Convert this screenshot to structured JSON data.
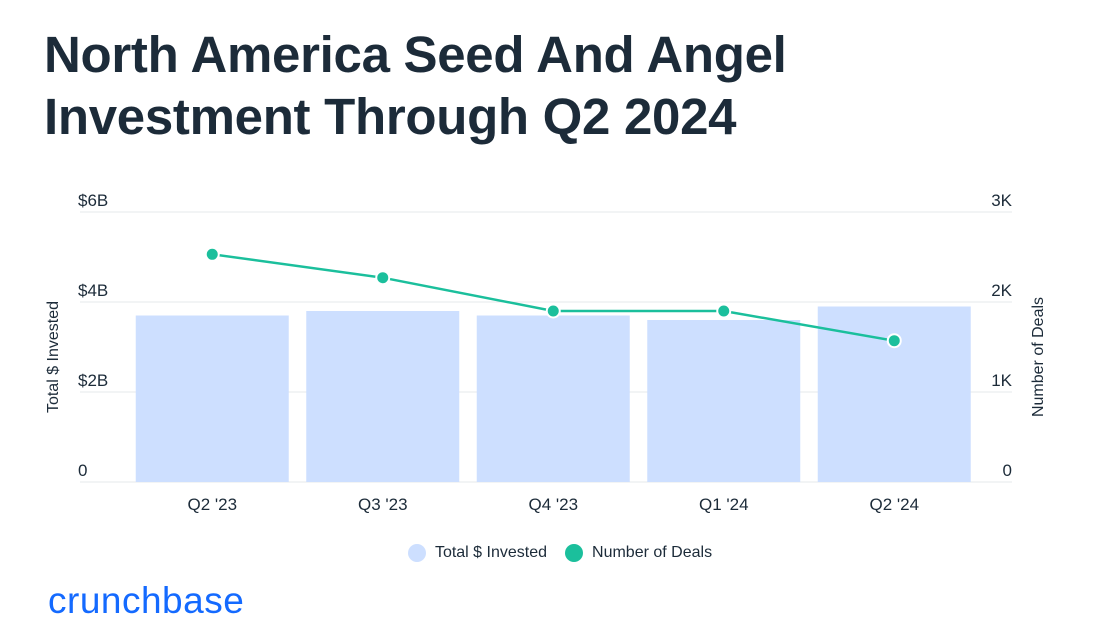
{
  "title_lines": [
    "North America Seed And Angel",
    "Investment Through Q2 2024"
  ],
  "colors": {
    "bar": "#cddfff",
    "line": "#1bbf9c",
    "grid": "#e6e8eb",
    "text": "#1c2b39",
    "brand": "#146aff"
  },
  "chart_data": {
    "type": "bar+line",
    "title": "North America Seed And Angel Investment Through Q2 2024",
    "categories": [
      "Q2 '23",
      "Q3 '23",
      "Q4 '23",
      "Q1 '24",
      "Q2 '24"
    ],
    "series": [
      {
        "name": "Total $ Invested",
        "type": "bar",
        "axis": "left",
        "unit": "USD billions",
        "values": [
          3.7,
          3.8,
          3.7,
          3.6,
          3.9
        ]
      },
      {
        "name": "Number of Deals",
        "type": "line",
        "axis": "right",
        "unit": "deals",
        "values": [
          2530,
          2270,
          1900,
          1900,
          1570
        ]
      }
    ],
    "y_left": {
      "label": "Total $ Invested",
      "range": [
        0,
        6
      ],
      "ticks": [
        0,
        2,
        4,
        6
      ],
      "tick_labels": [
        "0",
        "$2B",
        "$4B",
        "$6B"
      ]
    },
    "y_right": {
      "label": "Number of Deals",
      "range": [
        0,
        3000
      ],
      "ticks": [
        0,
        1000,
        2000,
        3000
      ],
      "tick_labels": [
        "0",
        "1K",
        "2K",
        "3K"
      ]
    },
    "grid": true,
    "legend_position": "bottom-center"
  },
  "brand": {
    "logo_text": "crunchbase"
  }
}
